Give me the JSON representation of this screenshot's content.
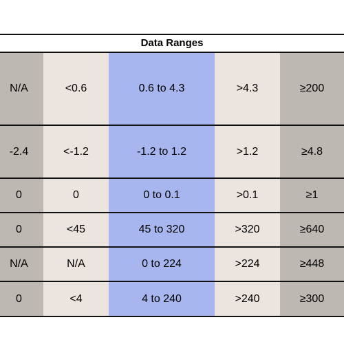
{
  "table": {
    "title": "Data Ranges",
    "rows": [
      [
        "N/A",
        "<0.6",
        "0.6 to 4.3",
        ">4.3",
        "≥200"
      ],
      [
        "-2.4",
        "<-1.2",
        "-1.2 to 1.2",
        ">1.2",
        "≥4.8"
      ],
      [
        "0",
        "0",
        "0 to 0.1",
        ">0.1",
        "≥1"
      ],
      [
        "0",
        "<45",
        "45 to 320",
        ">320",
        "≥640"
      ],
      [
        "N/A",
        "N/A",
        "0 to 224",
        ">224",
        "≥448"
      ],
      [
        "0",
        "<4",
        "4  to 240",
        ">240",
        "≥300"
      ]
    ]
  },
  "colors": {
    "gray": "#bdb8b1",
    "beige": "#ece4de",
    "blue": "#a7b6ee"
  }
}
